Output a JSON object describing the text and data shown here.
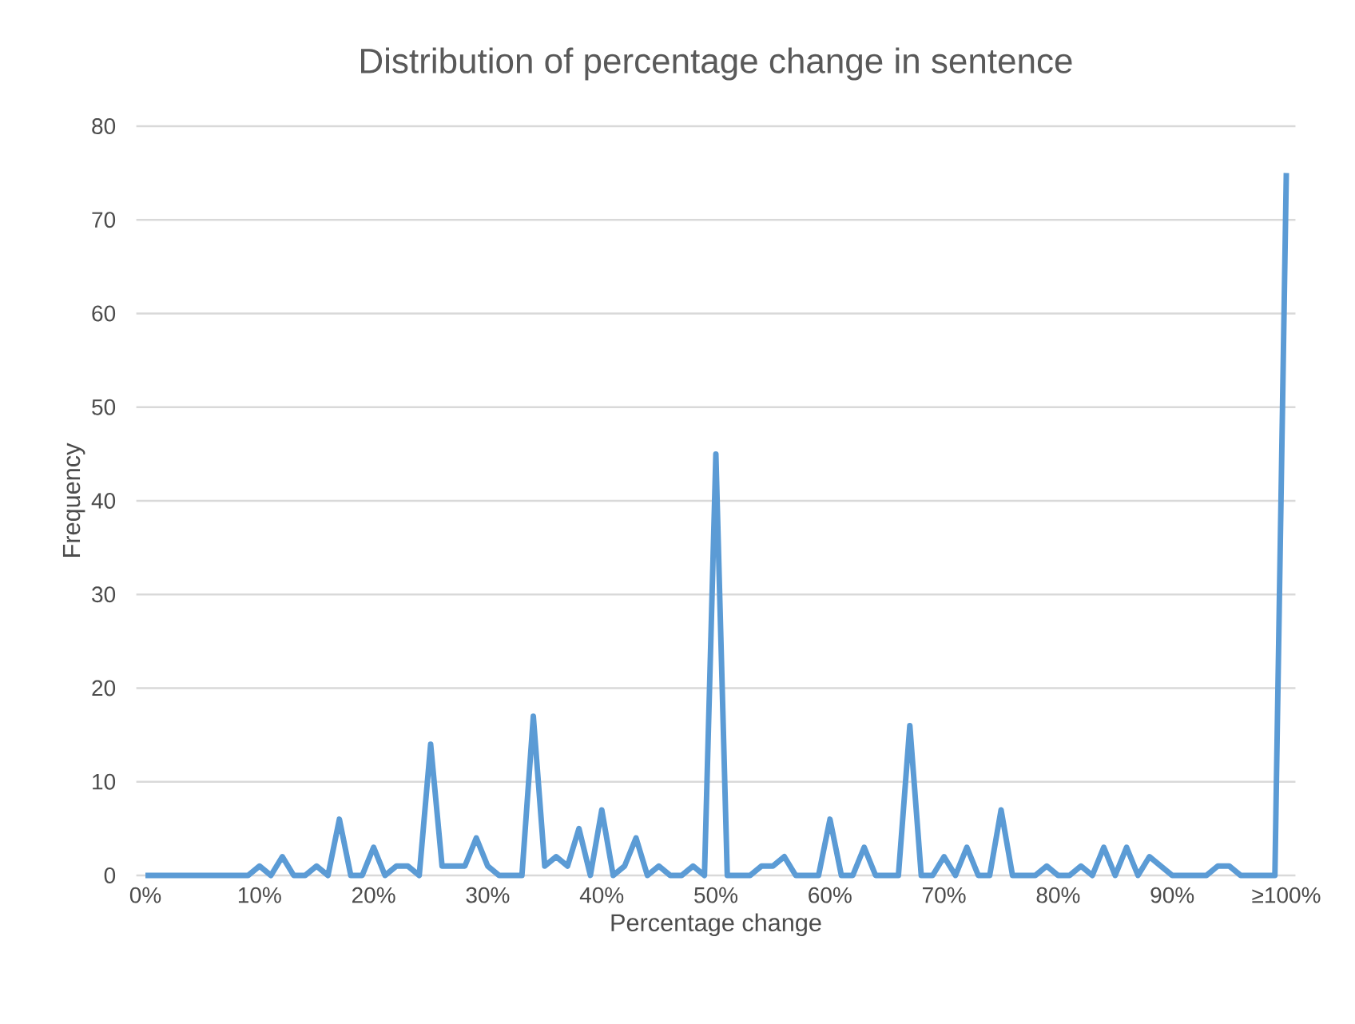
{
  "chart_data": {
    "type": "line",
    "title": "Distribution of percentage change in sentence",
    "xlabel": "Percentage change",
    "ylabel": "Frequency",
    "categories": [
      "0%",
      null,
      null,
      null,
      null,
      null,
      null,
      null,
      null,
      null,
      "10%",
      null,
      null,
      null,
      null,
      null,
      null,
      null,
      null,
      null,
      "20%",
      null,
      null,
      null,
      null,
      null,
      null,
      null,
      null,
      null,
      "30%",
      null,
      null,
      null,
      null,
      null,
      null,
      null,
      null,
      null,
      "40%",
      null,
      null,
      null,
      null,
      null,
      null,
      null,
      null,
      null,
      "50%",
      null,
      null,
      null,
      null,
      null,
      null,
      null,
      null,
      null,
      "60%",
      null,
      null,
      null,
      null,
      null,
      null,
      null,
      null,
      null,
      "70%",
      null,
      null,
      null,
      null,
      null,
      null,
      null,
      null,
      null,
      "80%",
      null,
      null,
      null,
      null,
      null,
      null,
      null,
      null,
      null,
      "90%",
      null,
      null,
      null,
      null,
      null,
      null,
      null,
      null,
      null,
      "≥100%"
    ],
    "series": [
      {
        "color": "#5b9bd5",
        "values": [
          0,
          0,
          0,
          0,
          0,
          0,
          0,
          0,
          0,
          0,
          1,
          0,
          2,
          0,
          0,
          1,
          0,
          6,
          0,
          0,
          3,
          0,
          1,
          1,
          0,
          14,
          1,
          1,
          1,
          4,
          1,
          0,
          0,
          0,
          17,
          1,
          2,
          1,
          5,
          0,
          7,
          0,
          1,
          4,
          0,
          1,
          0,
          0,
          1,
          0,
          45,
          0,
          0,
          0,
          1,
          1,
          2,
          0,
          0,
          0,
          6,
          0,
          0,
          3,
          0,
          0,
          0,
          16,
          0,
          0,
          2,
          0,
          3,
          0,
          0,
          7,
          0,
          0,
          0,
          1,
          0,
          0,
          1,
          0,
          3,
          0,
          3,
          0,
          2,
          1,
          0,
          0,
          0,
          0,
          1,
          1,
          0,
          0,
          0,
          0,
          75
        ]
      }
    ],
    "ylim": [
      0,
      80
    ],
    "yticks": [
      0,
      10,
      20,
      30,
      40,
      50,
      60,
      70,
      80
    ],
    "grid": "y",
    "marker": "none",
    "line_style": "solid"
  }
}
